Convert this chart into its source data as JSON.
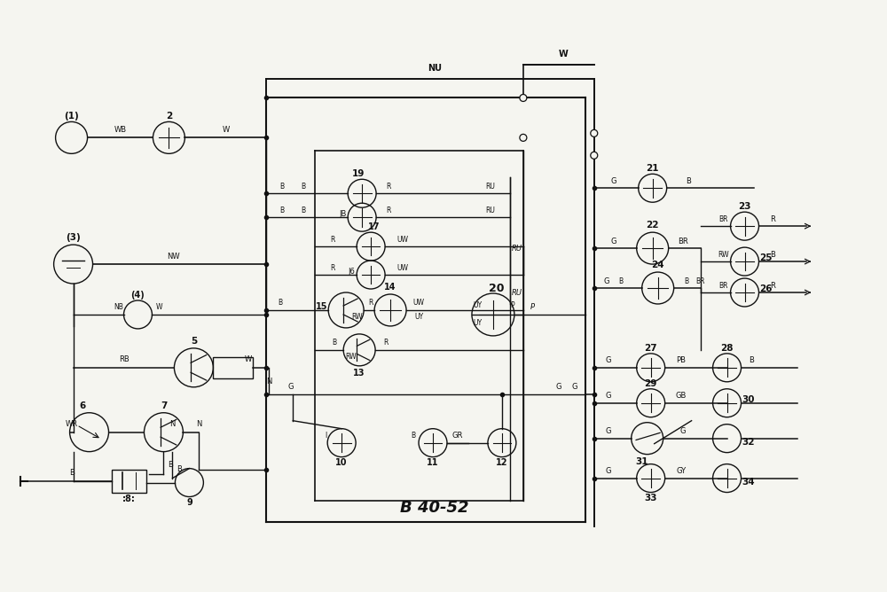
{
  "title": "B 40-52",
  "bg": "#f5f5f0",
  "lc": "#111111",
  "tc": "#111111",
  "figsize": [
    10.0,
    6.68
  ],
  "dpi": 100,
  "xlim": [
    0,
    1000
  ],
  "ylim": [
    0,
    668
  ]
}
